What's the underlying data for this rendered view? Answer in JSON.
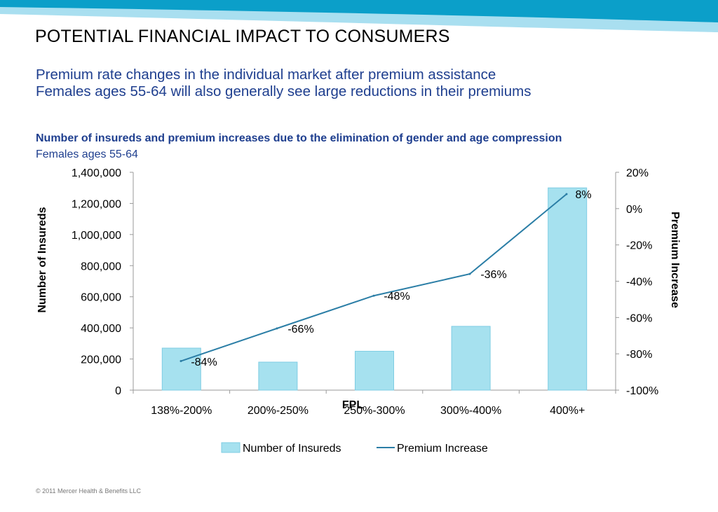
{
  "slide": {
    "title": "POTENTIAL FINANCIAL IMPACT TO CONSUMERS",
    "subtitle_lines": [
      "Premium rate changes in the individual market after premium assistance",
      "Females ages 55-64 will also generally see large reductions in their premiums"
    ],
    "footer": "© 2011 Mercer Health & Benefits LLC"
  },
  "colors": {
    "band_dark": "#0b9fc9",
    "band_light": "#a9dff0",
    "bar_fill": "#a6e1ef",
    "bar_stroke": "#7fcde3",
    "line": "#2b7ea6",
    "title_blue": "#1f3f8f"
  },
  "chart_data": {
    "type": "bar",
    "title": "Number of insureds and premium increases due to the elimination of gender and age compression",
    "subtitle": "Females ages 55-64",
    "xlabel": "FPL",
    "ylabel": "Number of Insureds",
    "y2label": "Premium Increase",
    "categories": [
      "138%-200%",
      "200%-250%",
      "250%-300%",
      "300%-400%",
      "400%+"
    ],
    "ylim": [
      0,
      1400000
    ],
    "y_ticks": [
      "0",
      "200,000",
      "400,000",
      "600,000",
      "800,000",
      "1,000,000",
      "1,200,000",
      "1,400,000"
    ],
    "y2lim": [
      -100,
      20
    ],
    "y2_ticks": [
      "-100%",
      "-80%",
      "-60%",
      "-40%",
      "-20%",
      "0%",
      "20%"
    ],
    "series": [
      {
        "name": "Number of Insureds",
        "type": "bar",
        "axis": "left",
        "values": [
          270000,
          180000,
          250000,
          410000,
          1300000
        ]
      },
      {
        "name": "Premium Increase",
        "type": "line",
        "axis": "right",
        "values": [
          -84,
          -66,
          -48,
          -36,
          8
        ],
        "labels": [
          "-84%",
          "-66%",
          "-48%",
          "-36%",
          "8%"
        ]
      }
    ],
    "legend_position": "bottom",
    "grid": false
  }
}
